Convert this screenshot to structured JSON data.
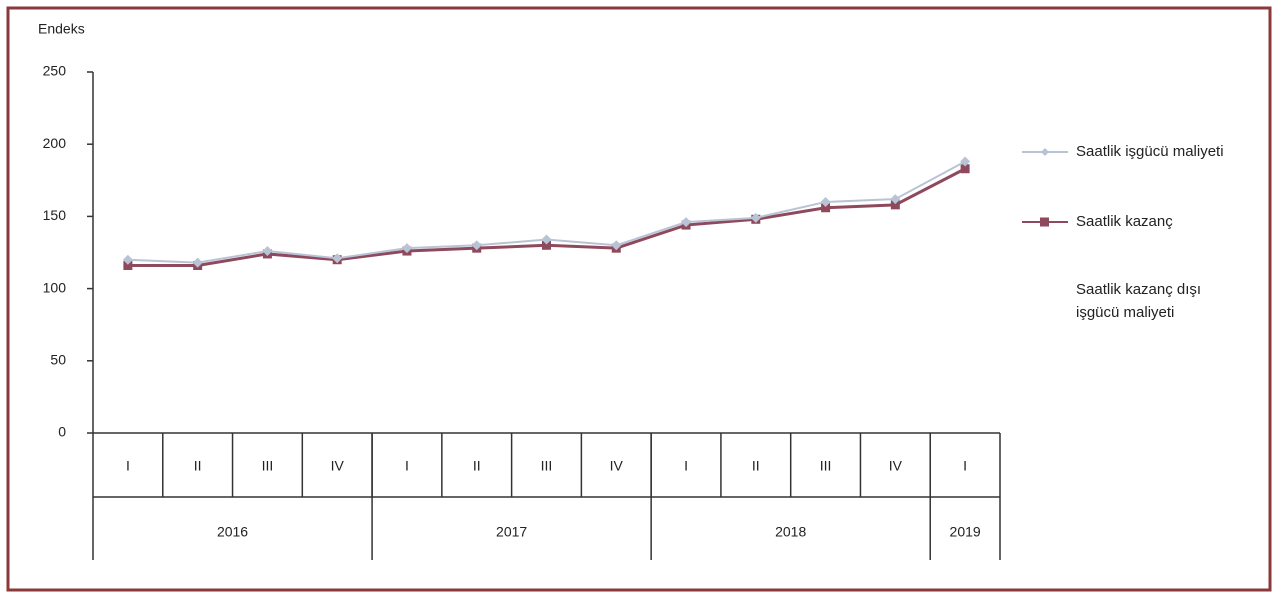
{
  "chart_data": {
    "type": "line",
    "y_label": "Endeks",
    "categories": [
      "I",
      "II",
      "III",
      "IV",
      "I",
      "II",
      "III",
      "IV",
      "I",
      "II",
      "III",
      "IV",
      "I"
    ],
    "groups": [
      {
        "label": "2016",
        "size": 4
      },
      {
        "label": "2017",
        "size": 4
      },
      {
        "label": "2018",
        "size": 4
      },
      {
        "label": "2019",
        "size": 1
      }
    ],
    "series": [
      {
        "name": "Saatlik işgücü maliyeti",
        "color": "#b9c3d6",
        "marker": "diamond",
        "values": [
          120,
          118,
          126,
          121,
          128,
          130,
          134,
          130,
          146,
          149,
          160,
          162,
          188
        ]
      },
      {
        "name": "Saatlik kazanç",
        "color": "#8e4a5c",
        "marker": "square",
        "values": [
          116,
          116,
          124,
          120,
          126,
          128,
          130,
          128,
          144,
          148,
          156,
          158,
          183
        ]
      },
      {
        "name": "Saatlik kazanç dışı işgücü maliyeti",
        "color": "#ffffff",
        "marker": "none",
        "values": [
          null,
          null,
          null,
          null,
          null,
          null,
          null,
          null,
          null,
          null,
          null,
          null,
          null
        ]
      }
    ],
    "ylim": [
      0,
      250
    ],
    "yticks": [
      0,
      50,
      100,
      150,
      200,
      250
    ],
    "legend": "right"
  }
}
